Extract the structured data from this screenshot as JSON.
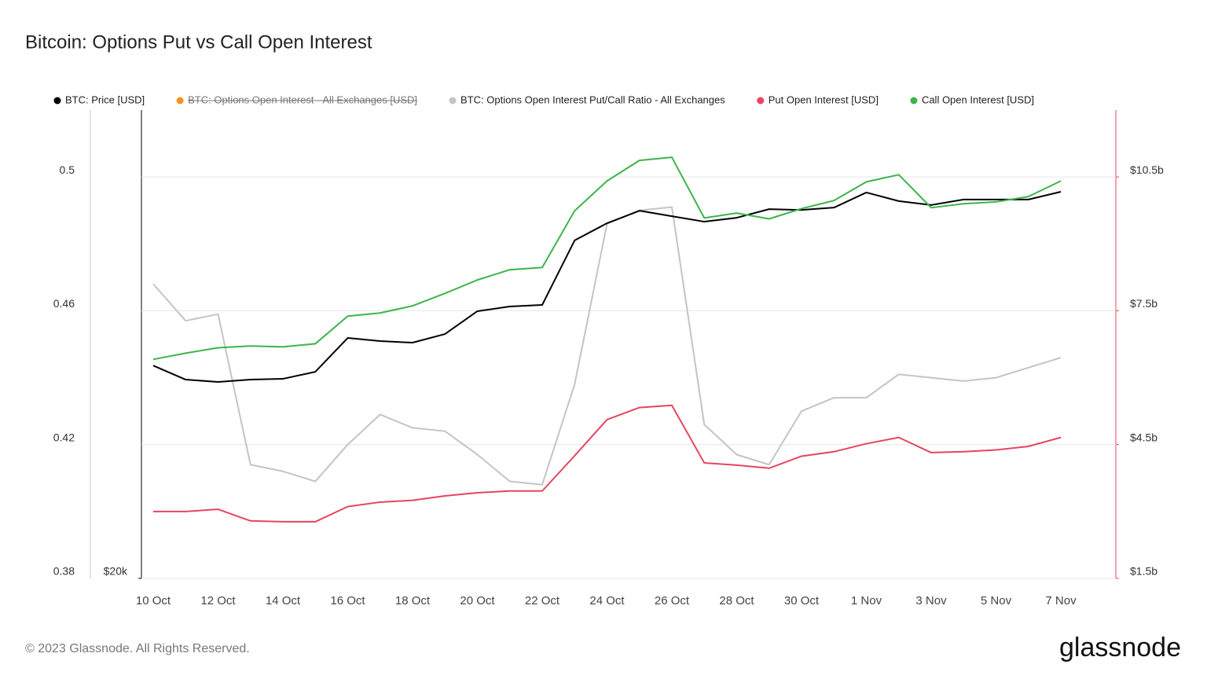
{
  "chart_data": {
    "type": "line",
    "title": "Bitcoin: Options Put vs Call Open Interest",
    "categories": [
      "10 Oct",
      null,
      "12 Oct",
      null,
      "14 Oct",
      null,
      "16 Oct",
      null,
      "18 Oct",
      null,
      "20 Oct",
      null,
      "22 Oct",
      null,
      "24 Oct",
      null,
      "26 Oct",
      null,
      "28 Oct",
      null,
      "30 Oct",
      null,
      "1 Nov",
      null,
      "3 Nov",
      null,
      "5 Nov",
      null,
      "7 Nov"
    ],
    "series": [
      {
        "name": "BTC: Price [USD]",
        "color": "#000000",
        "axis": "y3",
        "values": [
          28180,
          27640,
          27550,
          27640,
          27670,
          27940,
          29240,
          29120,
          29060,
          29390,
          30270,
          30450,
          30510,
          32990,
          33650,
          34130,
          33920,
          33710,
          33860,
          34190,
          34160,
          34250,
          34830,
          34500,
          34350,
          34560,
          34560,
          34560,
          34860
        ]
      },
      {
        "name": "BTC: Options Open Interest - All Exchanges [USD]",
        "color": "#f7931a",
        "hidden": true
      },
      {
        "name": "BTC: Options Open Interest Put/Call Ratio - All Exchanges",
        "color": "#c4c4c4",
        "axis": "y",
        "values": [
          0.468,
          0.457,
          0.459,
          0.414,
          0.412,
          0.409,
          0.42,
          0.429,
          0.425,
          0.424,
          0.417,
          0.409,
          0.408,
          0.438,
          0.486,
          0.49,
          0.491,
          0.426,
          0.417,
          0.414,
          0.43,
          0.434,
          0.434,
          0.441,
          0.44,
          0.439,
          0.44,
          0.443,
          0.446
        ]
      },
      {
        "name": "Put Open Interest [USD]",
        "color": "#e8445f",
        "axis": "y2",
        "values": [
          3.0,
          3.0,
          3.05,
          2.79,
          2.77,
          2.77,
          3.11,
          3.21,
          3.25,
          3.35,
          3.42,
          3.46,
          3.46,
          4.25,
          5.06,
          5.33,
          5.38,
          4.09,
          4.04,
          3.97,
          4.24,
          4.34,
          4.52,
          4.66,
          4.32,
          4.34,
          4.38,
          4.46,
          4.66
        ]
      },
      {
        "name": "Call Open Interest [USD]",
        "color": "#3cb44b",
        "axis": "y2",
        "values": [
          6.41,
          6.55,
          6.67,
          6.71,
          6.69,
          6.76,
          7.38,
          7.45,
          7.61,
          7.89,
          8.19,
          8.42,
          8.47,
          9.74,
          10.41,
          10.87,
          10.94,
          9.58,
          9.69,
          9.56,
          9.79,
          9.97,
          10.39,
          10.55,
          9.81,
          9.9,
          9.94,
          10.06,
          10.41
        ]
      }
    ],
    "ylim": [
      0.38,
      0.52
    ],
    "yticks": [
      0.38,
      0.42,
      0.46,
      0.5
    ],
    "y2lim": [
      1.5,
      12
    ],
    "y2ticks": [
      {
        "value": 1.5,
        "label": "$1.5b"
      },
      {
        "value": 4.5,
        "label": "$4.5b"
      },
      {
        "value": 7.5,
        "label": "$7.5b"
      },
      {
        "value": 10.5,
        "label": "$10.5b"
      }
    ],
    "y3lim": [
      20000,
      38000
    ],
    "y3ticks": [
      {
        "value": 20000,
        "label": "$20k"
      }
    ],
    "grid": true,
    "legend": "top",
    "footer": "© 2023 Glassnode. All Rights Reserved.",
    "logo": "glassnode"
  }
}
